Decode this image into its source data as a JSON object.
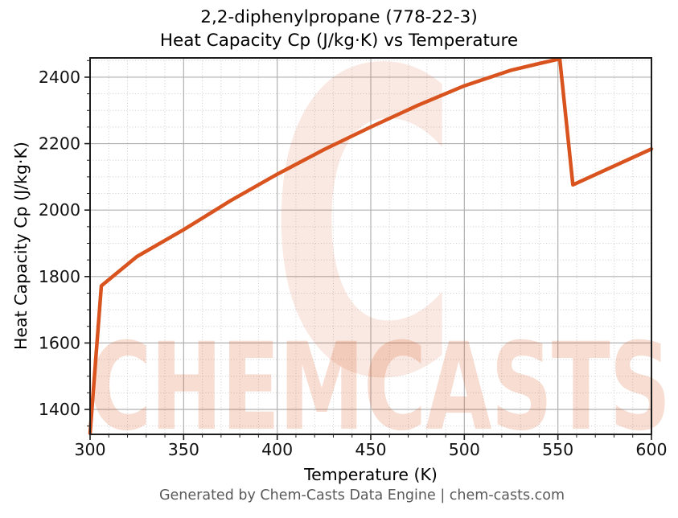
{
  "header": {
    "title_line1": "2,2-diphenylpropane (778-22-3)",
    "title_line2": "Heat Capacity Cp (J/kg·K) vs Temperature"
  },
  "footer": {
    "text": "Generated by Chem-Casts Data Engine | chem-casts.com"
  },
  "watermark": {
    "text": "CHEMCASTS",
    "logo_glyph": "C"
  },
  "colors": {
    "line": "#d9531f",
    "watermark_text": "rgba(217,83,30,0.20)",
    "watermark_logo": "rgba(217,83,30,0.13)",
    "major_grid": "#b0b0b0",
    "minor_grid": "#cfcfcf",
    "axis": "#1c1c1c",
    "tick_label": "#111111",
    "footer_text": "#595959"
  },
  "chart_data": {
    "type": "line",
    "title": "2,2-diphenylpropane (778-22-3)",
    "subtitle": "Heat Capacity Cp (J/kg·K) vs Temperature",
    "xlabel": "Temperature (K)",
    "ylabel": "Heat Capacity Cp (J/kg·K)",
    "xlim": [
      300,
      600
    ],
    "ylim": [
      1325,
      2458
    ],
    "x_ticks": [
      300,
      350,
      400,
      450,
      500,
      550,
      600
    ],
    "y_ticks": [
      1400,
      1600,
      1800,
      2000,
      2200,
      2400
    ],
    "x_minor_step": 10,
    "y_minor_step": 50,
    "grid": "major-solid, minor-dotted",
    "legend": "none",
    "series": [
      {
        "name": "Heat Capacity Cp (J/kg·K)",
        "color": "#d9531f",
        "points": [
          [
            300,
            1328
          ],
          [
            306,
            1772
          ],
          [
            325,
            1860
          ],
          [
            350,
            1941
          ],
          [
            375,
            2028
          ],
          [
            400,
            2108
          ],
          [
            425,
            2182
          ],
          [
            450,
            2250
          ],
          [
            475,
            2315
          ],
          [
            500,
            2374
          ],
          [
            525,
            2421
          ],
          [
            540,
            2441
          ],
          [
            551,
            2455
          ],
          [
            558,
            2076
          ],
          [
            600,
            2184
          ]
        ]
      }
    ]
  }
}
